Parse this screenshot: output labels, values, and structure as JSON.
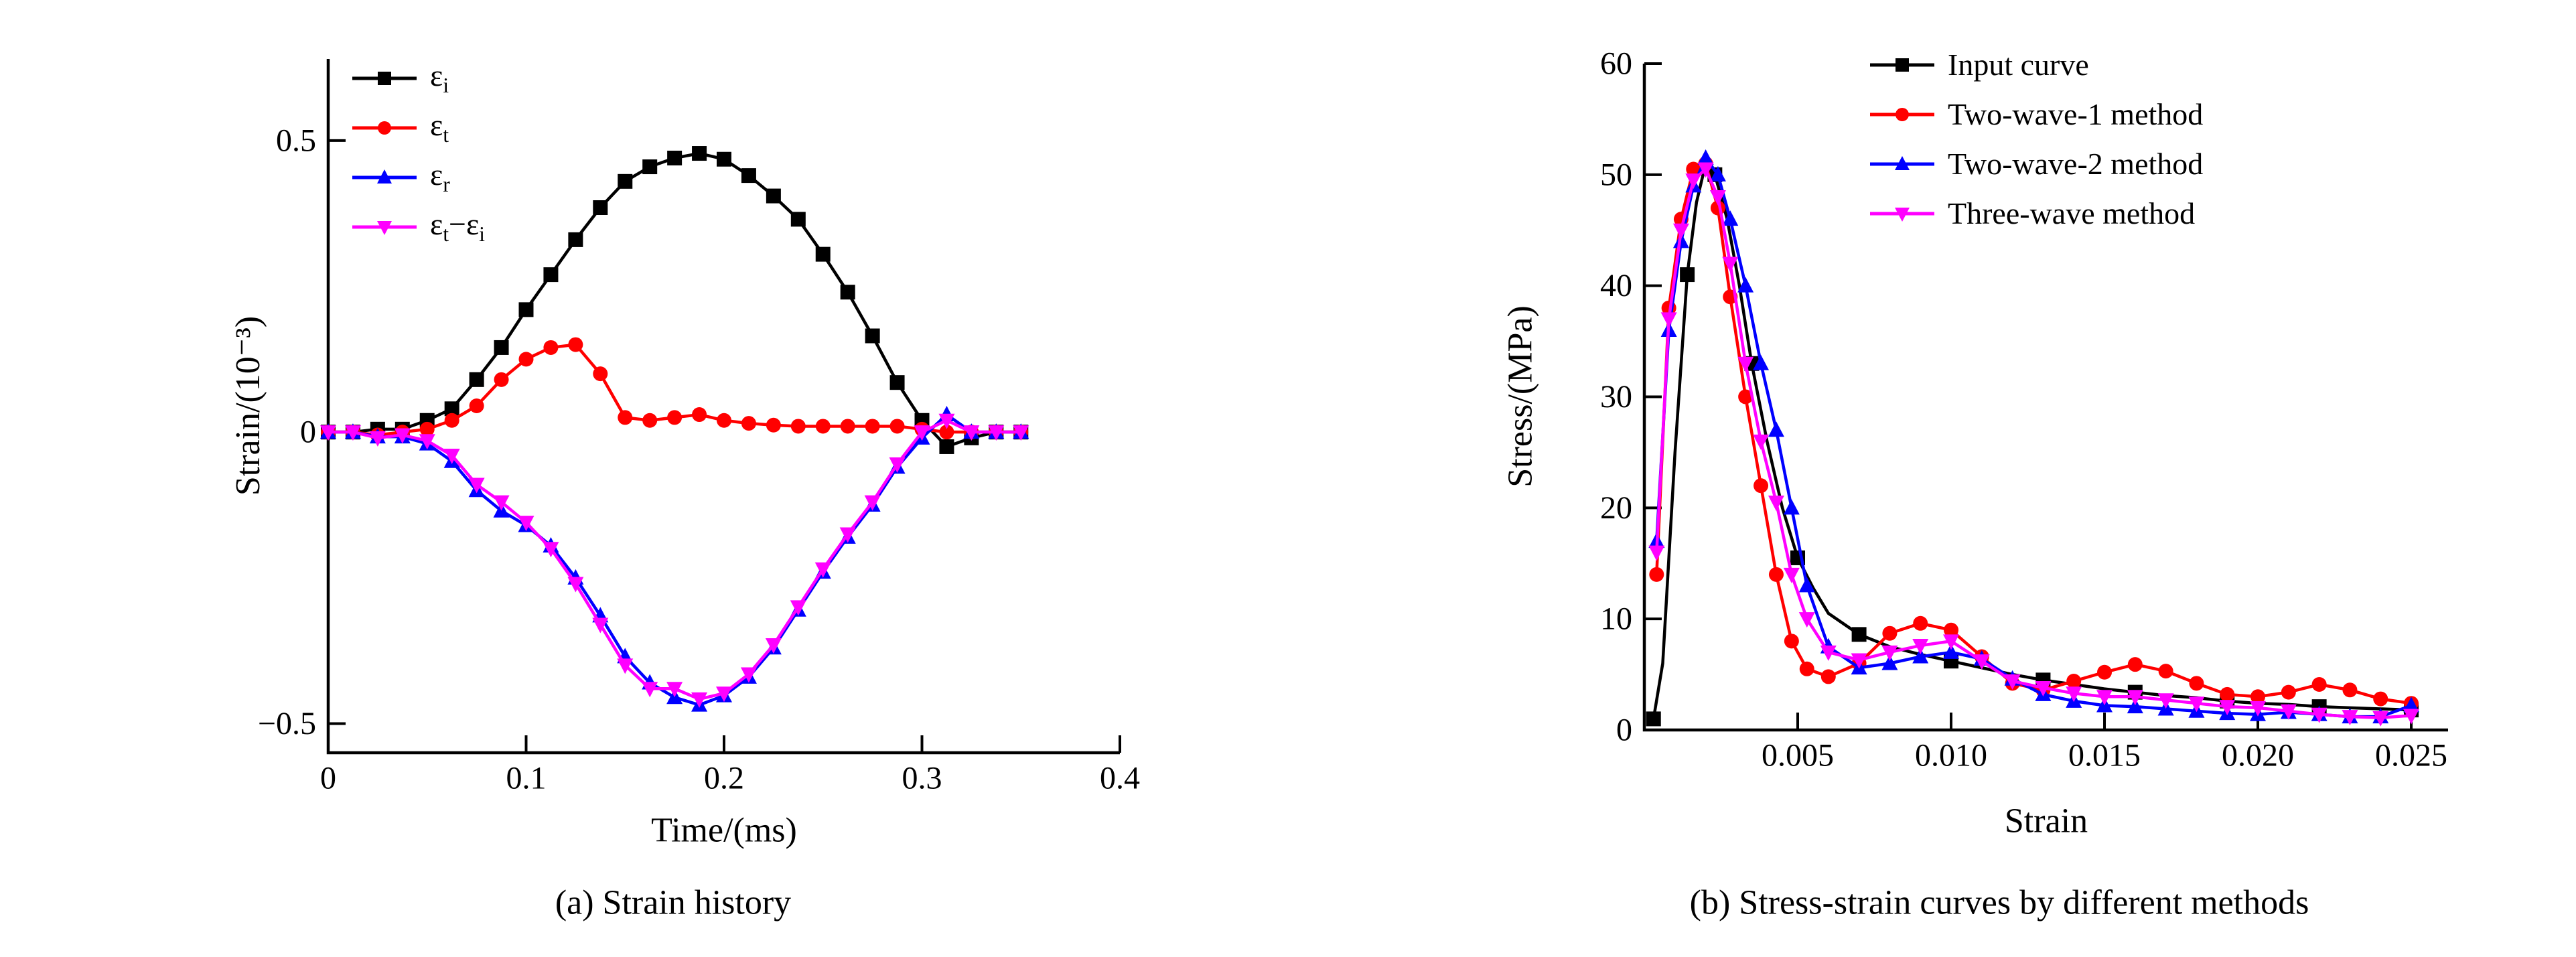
{
  "figure": {
    "background": "#ffffff"
  },
  "chart_data": [
    {
      "id": "a",
      "type": "line",
      "caption": "(a) Strain history",
      "xlabel": "Time/(ms)",
      "ylabel": "Strain/(10⁻³)",
      "xlim": [
        0,
        0.4
      ],
      "ylim": [
        -0.55,
        0.64
      ],
      "grid": false,
      "legend_position": "top-left",
      "xticks": [
        {
          "v": 0,
          "label": "0"
        },
        {
          "v": 0.1,
          "label": "0.1"
        },
        {
          "v": 0.2,
          "label": "0.2"
        },
        {
          "v": 0.3,
          "label": "0.3"
        },
        {
          "v": 0.4,
          "label": "0.4"
        }
      ],
      "yticks": [
        {
          "v": -0.5,
          "label": "−0.5"
        },
        {
          "v": 0,
          "label": "0"
        },
        {
          "v": 0.5,
          "label": "0.5"
        }
      ],
      "x": [
        0,
        0.0125,
        0.025,
        0.0375,
        0.05,
        0.0625,
        0.075,
        0.0875,
        0.1,
        0.1125,
        0.125,
        0.1375,
        0.15,
        0.1625,
        0.175,
        0.1875,
        0.2,
        0.2125,
        0.225,
        0.2375,
        0.25,
        0.2625,
        0.275,
        0.2875,
        0.3,
        0.3125,
        0.325,
        0.3375,
        0.35
      ],
      "series": [
        {
          "name": "ε_i",
          "color": "#000000",
          "marker": "square",
          "markEvery": 1,
          "values": [
            0,
            0,
            0.005,
            0.005,
            0.02,
            0.04,
            0.09,
            0.145,
            0.21,
            0.27,
            0.33,
            0.385,
            0.43,
            0.455,
            0.47,
            0.478,
            0.468,
            0.44,
            0.405,
            0.365,
            0.305,
            0.24,
            0.165,
            0.085,
            0.02,
            -0.025,
            -0.01,
            0,
            0
          ]
        },
        {
          "name": "ε_t",
          "color": "#ff0000",
          "marker": "circle",
          "markEvery": 1,
          "values": [
            0,
            0,
            -0.005,
            0,
            0.005,
            0.02,
            0.045,
            0.09,
            0.125,
            0.145,
            0.15,
            0.1,
            0.025,
            0.02,
            0.025,
            0.03,
            0.02,
            0.015,
            0.012,
            0.01,
            0.01,
            0.01,
            0.01,
            0.01,
            0.005,
            0,
            0,
            0,
            0
          ]
        },
        {
          "name": "ε_r",
          "color": "#0000ff",
          "marker": "triangle-up",
          "markEvery": 1,
          "values": [
            0,
            0,
            -0.008,
            -0.008,
            -0.02,
            -0.05,
            -0.1,
            -0.135,
            -0.16,
            -0.195,
            -0.25,
            -0.315,
            -0.385,
            -0.43,
            -0.455,
            -0.468,
            -0.452,
            -0.42,
            -0.37,
            -0.305,
            -0.24,
            -0.18,
            -0.125,
            -0.06,
            -0.01,
            0.03,
            0,
            0,
            0
          ]
        },
        {
          "name": "ε_t−ε_i",
          "color": "#ff00ff",
          "marker": "triangle-down",
          "markEvery": 1,
          "values": [
            0,
            0,
            -0.01,
            -0.005,
            -0.015,
            -0.04,
            -0.09,
            -0.12,
            -0.155,
            -0.2,
            -0.26,
            -0.33,
            -0.4,
            -0.44,
            -0.44,
            -0.458,
            -0.448,
            -0.415,
            -0.365,
            -0.3,
            -0.235,
            -0.175,
            -0.12,
            -0.055,
            0,
            0.02,
            0,
            0,
            0
          ]
        }
      ]
    },
    {
      "id": "b",
      "type": "line",
      "caption": "(b) Stress-strain curves by different methods",
      "xlabel": "Strain",
      "ylabel": "Stress/(MPa)",
      "xlim": [
        0,
        0.0262
      ],
      "ylim": [
        0,
        60
      ],
      "grid": false,
      "legend_position": "top-center",
      "xticks": [
        {
          "v": 0.005,
          "label": "0.005"
        },
        {
          "v": 0.01,
          "label": "0.010"
        },
        {
          "v": 0.015,
          "label": "0.015"
        },
        {
          "v": 0.02,
          "label": "0.020"
        },
        {
          "v": 0.025,
          "label": "0.025"
        }
      ],
      "yticks": [
        {
          "v": 0,
          "label": "0"
        },
        {
          "v": 10,
          "label": "10"
        },
        {
          "v": 20,
          "label": "20"
        },
        {
          "v": 30,
          "label": "30"
        },
        {
          "v": 40,
          "label": "40"
        },
        {
          "v": 50,
          "label": "50"
        },
        {
          "v": 60,
          "label": "60"
        }
      ],
      "series": [
        {
          "name": "Input curve",
          "color": "#000000",
          "marker": "square",
          "markEvery": 3,
          "x": [
            0.0003,
            0.0006,
            0.001,
            0.0014,
            0.0017,
            0.002,
            0.0023,
            0.0027,
            0.0031,
            0.0035,
            0.004,
            0.0045,
            0.005,
            0.0055,
            0.006,
            0.007,
            0.008,
            0.009,
            0.01,
            0.011,
            0.012,
            0.013,
            0.014,
            0.015,
            0.016,
            0.017,
            0.018,
            0.019,
            0.02,
            0.021,
            0.022,
            0.023,
            0.024,
            0.025
          ],
          "values": [
            1,
            6,
            25,
            41,
            47.5,
            51,
            50,
            46,
            40,
            33,
            26,
            20,
            15.5,
            12.8,
            10.5,
            8.6,
            7.5,
            6.8,
            6.2,
            5.6,
            5,
            4.5,
            4.1,
            3.7,
            3.4,
            3.1,
            2.9,
            2.6,
            2.4,
            2.3,
            2.1,
            2,
            1.9,
            1.8
          ]
        },
        {
          "name": "Two-wave-1 method",
          "color": "#ff0000",
          "marker": "circle",
          "markEvery": 1,
          "x": [
            0.0004,
            0.0008,
            0.0012,
            0.0016,
            0.002,
            0.0024,
            0.0028,
            0.0033,
            0.0038,
            0.0043,
            0.0048,
            0.0053,
            0.006,
            0.007,
            0.008,
            0.009,
            0.01,
            0.011,
            0.012,
            0.013,
            0.014,
            0.015,
            0.016,
            0.017,
            0.018,
            0.019,
            0.02,
            0.021,
            0.022,
            0.023,
            0.024,
            0.025
          ],
          "values": [
            14,
            38,
            46,
            50.5,
            51,
            47,
            39,
            30,
            22,
            14,
            8,
            5.5,
            4.8,
            6,
            8.7,
            9.6,
            9,
            6.6,
            4.2,
            3.6,
            4.4,
            5.2,
            5.9,
            5.3,
            4.2,
            3.2,
            3,
            3.4,
            4.1,
            3.6,
            2.8,
            2.4
          ]
        },
        {
          "name": "Two-wave-2 method",
          "color": "#0000ff",
          "marker": "triangle-up",
          "markEvery": 1,
          "x": [
            0.0004,
            0.0008,
            0.0012,
            0.0016,
            0.002,
            0.0024,
            0.0028,
            0.0033,
            0.0038,
            0.0043,
            0.0048,
            0.0053,
            0.006,
            0.007,
            0.008,
            0.009,
            0.01,
            0.011,
            0.012,
            0.013,
            0.014,
            0.015,
            0.016,
            0.017,
            0.018,
            0.019,
            0.02,
            0.021,
            0.022,
            0.023,
            0.024,
            0.025
          ],
          "values": [
            17,
            36,
            44,
            49,
            51.5,
            50,
            46,
            40,
            33,
            27,
            20,
            13,
            7.5,
            5.6,
            6,
            6.6,
            7,
            6.4,
            4.6,
            3.2,
            2.6,
            2.2,
            2.1,
            1.9,
            1.7,
            1.5,
            1.4,
            1.6,
            1.4,
            1.2,
            1.2,
            2.2
          ]
        },
        {
          "name": "Three-wave method",
          "color": "#ff00ff",
          "marker": "triangle-down",
          "markEvery": 1,
          "x": [
            0.0004,
            0.0008,
            0.0012,
            0.0016,
            0.002,
            0.0024,
            0.0028,
            0.0033,
            0.0038,
            0.0043,
            0.0048,
            0.0053,
            0.006,
            0.007,
            0.008,
            0.009,
            0.01,
            0.011,
            0.012,
            0.013,
            0.014,
            0.015,
            0.016,
            0.017,
            0.018,
            0.019,
            0.02,
            0.021,
            0.022,
            0.023,
            0.024,
            0.025
          ],
          "values": [
            16,
            37,
            45,
            49.5,
            50.5,
            48,
            42,
            33,
            26,
            20.5,
            14,
            10,
            7,
            6.3,
            7,
            7.6,
            8,
            6.2,
            4.4,
            3.8,
            3.3,
            3,
            3,
            2.7,
            2.4,
            2.1,
            2,
            1.7,
            1.4,
            1.2,
            1.1,
            1.3
          ]
        }
      ]
    }
  ]
}
